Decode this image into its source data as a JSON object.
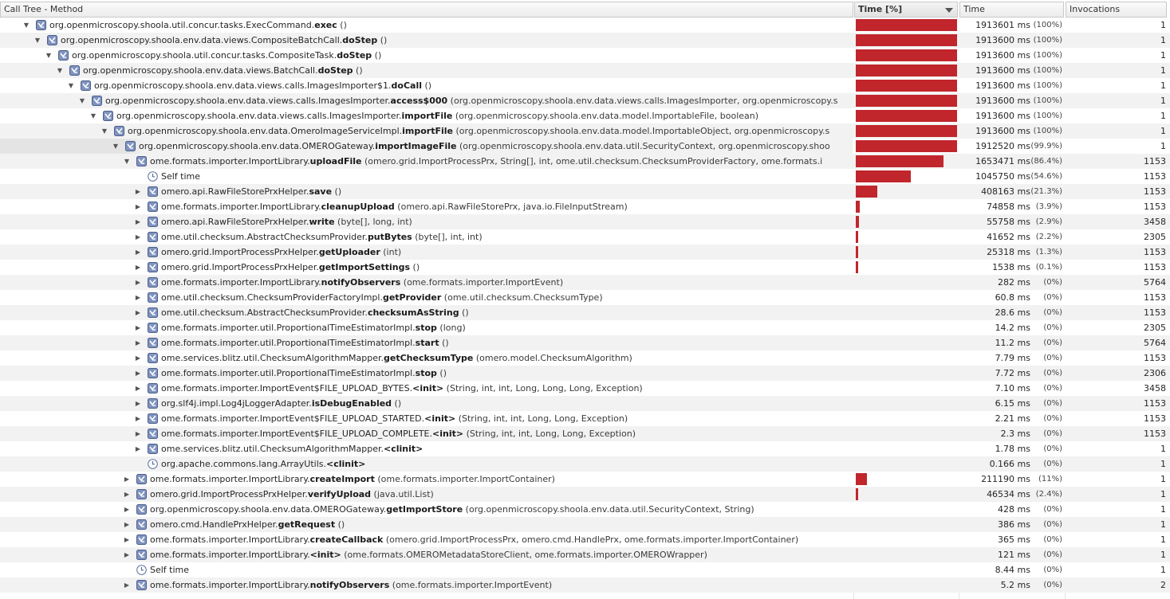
{
  "columns": {
    "method": "Call Tree - Method",
    "time_pct": "Time [%]",
    "time": "Time",
    "invocations": "Invocations"
  },
  "colors": {
    "bar": "#c0262c",
    "row_alt": "#f2f2f2"
  },
  "rows": [
    {
      "depth": 0,
      "exp": "down",
      "icon": "method-icon",
      "pre": "org.openmicroscopy.shoola.util.concur.tasks.ExecCommand.",
      "bold": "exec",
      "params": " ()",
      "bar": 100,
      "ms": "1913601 ms",
      "pct": "(100%)",
      "inv": "1"
    },
    {
      "depth": 1,
      "exp": "down",
      "icon": "method-icon",
      "pre": "org.openmicroscopy.shoola.env.data.views.CompositeBatchCall.",
      "bold": "doStep",
      "params": " ()",
      "bar": 100,
      "ms": "1913600 ms",
      "pct": "(100%)",
      "inv": "1"
    },
    {
      "depth": 2,
      "exp": "down",
      "icon": "method-icon",
      "pre": "org.openmicroscopy.shoola.util.concur.tasks.CompositeTask.",
      "bold": "doStep",
      "params": " ()",
      "bar": 100,
      "ms": "1913600 ms",
      "pct": "(100%)",
      "inv": "1"
    },
    {
      "depth": 3,
      "exp": "down",
      "icon": "method-icon",
      "pre": "org.openmicroscopy.shoola.env.data.views.BatchCall.",
      "bold": "doStep",
      "params": " ()",
      "bar": 100,
      "ms": "1913600 ms",
      "pct": "(100%)",
      "inv": "1"
    },
    {
      "depth": 4,
      "exp": "down",
      "icon": "method-icon",
      "pre": "org.openmicroscopy.shoola.env.data.views.calls.ImagesImporter$1.",
      "bold": "doCall",
      "params": " ()",
      "bar": 100,
      "ms": "1913600 ms",
      "pct": "(100%)",
      "inv": "1"
    },
    {
      "depth": 5,
      "exp": "down",
      "icon": "method-icon",
      "pre": "org.openmicroscopy.shoola.env.data.views.calls.ImagesImporter.",
      "bold": "access$000",
      "params": " (org.openmicroscopy.shoola.env.data.views.calls.ImagesImporter, org.openmicroscopy.s",
      "bar": 100,
      "ms": "1913600 ms",
      "pct": "(100%)",
      "inv": "1"
    },
    {
      "depth": 6,
      "exp": "down",
      "icon": "method-icon",
      "pre": "org.openmicroscopy.shoola.env.data.views.calls.ImagesImporter.",
      "bold": "importFile",
      "params": " (org.openmicroscopy.shoola.env.data.model.ImportableFile, boolean)",
      "bar": 100,
      "ms": "1913600 ms",
      "pct": "(100%)",
      "inv": "1"
    },
    {
      "depth": 7,
      "exp": "down",
      "icon": "method-icon",
      "pre": "org.openmicroscopy.shoola.env.data.OmeroImageServiceImpl.",
      "bold": "importFile",
      "params": " (org.openmicroscopy.shoola.env.data.model.ImportableObject, org.openmicroscopy.s",
      "bar": 100,
      "ms": "1913600 ms",
      "pct": "(100%)",
      "inv": "1"
    },
    {
      "depth": 8,
      "exp": "down",
      "icon": "method-icon",
      "sel": true,
      "pre": "org.openmicroscopy.shoola.env.data.OMEROGateway.",
      "bold": "importImageFile",
      "params": " (org.openmicroscopy.shoola.env.data.util.SecurityContext, org.openmicroscopy.shoo",
      "bar": 99.9,
      "ms": "1912520 ms",
      "pct": "(99.9%)",
      "inv": "1"
    },
    {
      "depth": 9,
      "exp": "down",
      "icon": "method-icon",
      "pre": "ome.formats.importer.ImportLibrary.",
      "bold": "uploadFile",
      "params": " (omero.grid.ImportProcessPrx, String[], int, ome.util.checksum.ChecksumProviderFactory, ome.formats.i",
      "bar": 86.4,
      "ms": "1653471 ms",
      "pct": "(86.4%)",
      "inv": "1153"
    },
    {
      "depth": 10,
      "exp": "none",
      "icon": "clock-icon",
      "pre": "Self time",
      "bold": "",
      "params": "",
      "bar": 54.6,
      "ms": "1045750 ms",
      "pct": "(54.6%)",
      "inv": "1153"
    },
    {
      "depth": 10,
      "exp": "right",
      "icon": "method-icon",
      "pre": "omero.api.RawFileStorePrxHelper.",
      "bold": "save",
      "params": " ()",
      "bar": 21.3,
      "ms": "408163 ms",
      "pct": "(21.3%)",
      "inv": "1153"
    },
    {
      "depth": 10,
      "exp": "right",
      "icon": "method-icon",
      "pre": "ome.formats.importer.ImportLibrary.",
      "bold": "cleanupUpload",
      "params": " (omero.api.RawFileStorePrx, java.io.FileInputStream)",
      "bar": 3.9,
      "ms": "74858 ms",
      "pct": "(3.9%)",
      "inv": "1153"
    },
    {
      "depth": 10,
      "exp": "right",
      "icon": "method-icon",
      "pre": "omero.api.RawFileStorePrxHelper.",
      "bold": "write",
      "params": " (byte[], long, int)",
      "bar": 2.9,
      "ms": "55758 ms",
      "pct": "(2.9%)",
      "inv": "3458"
    },
    {
      "depth": 10,
      "exp": "right",
      "icon": "method-icon",
      "pre": "ome.util.checksum.AbstractChecksumProvider.",
      "bold": "putBytes",
      "params": " (byte[], int, int)",
      "bar": 2.2,
      "ms": "41652 ms",
      "pct": "(2.2%)",
      "inv": "2305"
    },
    {
      "depth": 10,
      "exp": "right",
      "icon": "method-icon",
      "pre": "omero.grid.ImportProcessPrxHelper.",
      "bold": "getUploader",
      "params": " (int)",
      "bar": 1.3,
      "ms": "25318 ms",
      "pct": "(1.3%)",
      "inv": "1153"
    },
    {
      "depth": 10,
      "exp": "right",
      "icon": "method-icon",
      "pre": "omero.grid.ImportProcessPrxHelper.",
      "bold": "getImportSettings",
      "params": " ()",
      "bar": 0.1,
      "ms": "1538 ms",
      "pct": "(0.1%)",
      "inv": "1153"
    },
    {
      "depth": 10,
      "exp": "right",
      "icon": "method-icon",
      "pre": "ome.formats.importer.ImportLibrary.",
      "bold": "notifyObservers",
      "params": " (ome.formats.importer.ImportEvent)",
      "bar": 0,
      "ms": "282 ms",
      "pct": "(0%)",
      "inv": "5764"
    },
    {
      "depth": 10,
      "exp": "right",
      "icon": "method-icon",
      "pre": "ome.util.checksum.ChecksumProviderFactoryImpl.",
      "bold": "getProvider",
      "params": " (ome.util.checksum.ChecksumType)",
      "bar": 0,
      "ms": "60.8 ms",
      "pct": "(0%)",
      "inv": "1153"
    },
    {
      "depth": 10,
      "exp": "right",
      "icon": "method-icon",
      "pre": "ome.util.checksum.AbstractChecksumProvider.",
      "bold": "checksumAsString",
      "params": " ()",
      "bar": 0,
      "ms": "28.6 ms",
      "pct": "(0%)",
      "inv": "1153"
    },
    {
      "depth": 10,
      "exp": "right",
      "icon": "method-icon",
      "pre": "ome.formats.importer.util.ProportionalTimeEstimatorImpl.",
      "bold": "stop",
      "params": " (long)",
      "bar": 0,
      "ms": "14.2 ms",
      "pct": "(0%)",
      "inv": "2305"
    },
    {
      "depth": 10,
      "exp": "right",
      "icon": "method-icon",
      "pre": "ome.formats.importer.util.ProportionalTimeEstimatorImpl.",
      "bold": "start",
      "params": " ()",
      "bar": 0,
      "ms": "11.2 ms",
      "pct": "(0%)",
      "inv": "5764"
    },
    {
      "depth": 10,
      "exp": "right",
      "icon": "method-icon",
      "pre": "ome.services.blitz.util.ChecksumAlgorithmMapper.",
      "bold": "getChecksumType",
      "params": " (omero.model.ChecksumAlgorithm)",
      "bar": 0,
      "ms": "7.79 ms",
      "pct": "(0%)",
      "inv": "1153"
    },
    {
      "depth": 10,
      "exp": "right",
      "icon": "method-icon",
      "pre": "ome.formats.importer.util.ProportionalTimeEstimatorImpl.",
      "bold": "stop",
      "params": " ()",
      "bar": 0,
      "ms": "7.72 ms",
      "pct": "(0%)",
      "inv": "2306"
    },
    {
      "depth": 10,
      "exp": "right",
      "icon": "method-icon",
      "pre": "ome.formats.importer.ImportEvent$FILE_UPLOAD_BYTES.",
      "bold": "<init>",
      "params": " (String, int, int, Long, Long, Long, Exception)",
      "bar": 0,
      "ms": "7.10 ms",
      "pct": "(0%)",
      "inv": "3458"
    },
    {
      "depth": 10,
      "exp": "right",
      "icon": "method-icon",
      "pre": "org.slf4j.impl.Log4jLoggerAdapter.",
      "bold": "isDebugEnabled",
      "params": " ()",
      "bar": 0,
      "ms": "6.15 ms",
      "pct": "(0%)",
      "inv": "1153"
    },
    {
      "depth": 10,
      "exp": "right",
      "icon": "method-icon",
      "pre": "ome.formats.importer.ImportEvent$FILE_UPLOAD_STARTED.",
      "bold": "<init>",
      "params": " (String, int, int, Long, Long, Exception)",
      "bar": 0,
      "ms": "2.21 ms",
      "pct": "(0%)",
      "inv": "1153"
    },
    {
      "depth": 10,
      "exp": "right",
      "icon": "method-icon",
      "pre": "ome.formats.importer.ImportEvent$FILE_UPLOAD_COMPLETE.",
      "bold": "<init>",
      "params": " (String, int, int, Long, Long, Exception)",
      "bar": 0,
      "ms": "2.3 ms",
      "pct": "(0%)",
      "inv": "1153"
    },
    {
      "depth": 10,
      "exp": "right",
      "icon": "method-icon",
      "pre": "ome.services.blitz.util.ChecksumAlgorithmMapper.",
      "bold": "<clinit>",
      "params": "",
      "bar": 0,
      "ms": "1.78 ms",
      "pct": "(0%)",
      "inv": "1"
    },
    {
      "depth": 10,
      "exp": "none",
      "icon": "clock-icon",
      "pre": "org.apache.commons.lang.ArrayUtils.",
      "bold": "<clinit>",
      "params": "",
      "bar": 0,
      "ms": "0.166 ms",
      "pct": "(0%)",
      "inv": "1"
    },
    {
      "depth": 9,
      "exp": "right",
      "icon": "method-icon",
      "pre": "ome.formats.importer.ImportLibrary.",
      "bold": "createImport",
      "params": " (ome.formats.importer.ImportContainer)",
      "bar": 11,
      "ms": "211190 ms",
      "pct": "(11%)",
      "inv": "1"
    },
    {
      "depth": 9,
      "exp": "right",
      "icon": "method-icon",
      "pre": "omero.grid.ImportProcessPrxHelper.",
      "bold": "verifyUpload",
      "params": " (java.util.List)",
      "bar": 2.4,
      "ms": "46534 ms",
      "pct": "(2.4%)",
      "inv": "1"
    },
    {
      "depth": 9,
      "exp": "right",
      "icon": "method-icon",
      "pre": "org.openmicroscopy.shoola.env.data.OMEROGateway.",
      "bold": "getImportStore",
      "params": " (org.openmicroscopy.shoola.env.data.util.SecurityContext, String)",
      "bar": 0,
      "ms": "428 ms",
      "pct": "(0%)",
      "inv": "1"
    },
    {
      "depth": 9,
      "exp": "right",
      "icon": "method-icon",
      "pre": "omero.cmd.HandlePrxHelper.",
      "bold": "getRequest",
      "params": " ()",
      "bar": 0,
      "ms": "386 ms",
      "pct": "(0%)",
      "inv": "1"
    },
    {
      "depth": 9,
      "exp": "right",
      "icon": "method-icon",
      "pre": "ome.formats.importer.ImportLibrary.",
      "bold": "createCallback",
      "params": " (omero.grid.ImportProcessPrx, omero.cmd.HandlePrx, ome.formats.importer.ImportContainer)",
      "bar": 0,
      "ms": "365 ms",
      "pct": "(0%)",
      "inv": "1"
    },
    {
      "depth": 9,
      "exp": "right",
      "icon": "method-icon",
      "pre": "ome.formats.importer.ImportLibrary.",
      "bold": "<init>",
      "params": " (ome.formats.OMEROMetadataStoreClient, ome.formats.importer.OMEROWrapper)",
      "bar": 0,
      "ms": "121 ms",
      "pct": "(0%)",
      "inv": "1"
    },
    {
      "depth": 9,
      "exp": "none",
      "icon": "clock-icon",
      "pre": "Self time",
      "bold": "",
      "params": "",
      "bar": 0,
      "ms": "8.44 ms",
      "pct": "(0%)",
      "inv": "1"
    },
    {
      "depth": 9,
      "exp": "right",
      "icon": "method-icon",
      "pre": "ome.formats.importer.ImportLibrary.",
      "bold": "notifyObservers",
      "params": " (ome.formats.importer.ImportEvent)",
      "bar": 0,
      "ms": "5.2 ms",
      "pct": "(0%)",
      "inv": "2"
    }
  ]
}
